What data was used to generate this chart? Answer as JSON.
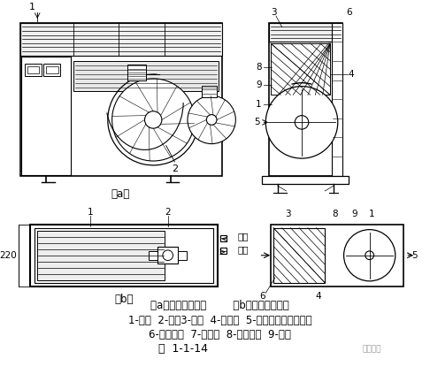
{
  "bg_color": "#ffffff",
  "lc": "#000000",
  "caption_line1": "（a）立式风机盘管        （b）卧式风机盘管",
  "caption_line2": "1-风机  2-电动3-盘管  4-凝水管  5-循环风进口及过滤器",
  "caption_line3": "6-出风格栅  7-控制器  8-吸声材料  9-箱体",
  "title": "图  1-1-14",
  "watermark": "暖通南社"
}
